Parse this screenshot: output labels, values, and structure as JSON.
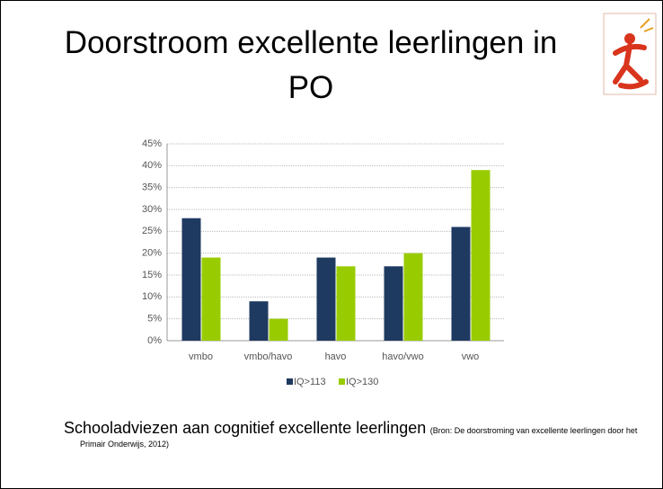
{
  "title": "Doorstroom excellente leerlingen in PO",
  "caption": "Schooladviezen aan cognitief excellente leerlingen",
  "source": "(Bron: De doorstroming van excellente leerlingen door het Primair Onderwijs, 2012)",
  "chart_data": {
    "type": "bar",
    "categories": [
      "vmbo",
      "vmbo/havo",
      "havo",
      "havo/vwo",
      "vwo"
    ],
    "series": [
      {
        "name": "IQ>113",
        "color": "#1f3a60",
        "values": [
          28,
          9,
          19,
          17,
          26
        ]
      },
      {
        "name": "IQ>130",
        "color": "#99cc00",
        "values": [
          19,
          5,
          17,
          20,
          39
        ]
      }
    ],
    "ylim": [
      0,
      45
    ],
    "yticks": [
      {
        "value": 0,
        "label": "0%"
      },
      {
        "value": 5,
        "label": "5%"
      },
      {
        "value": 10,
        "label": "10%"
      },
      {
        "value": 15,
        "label": "15%"
      },
      {
        "value": 20,
        "label": "20%"
      },
      {
        "value": 25,
        "label": "25%"
      },
      {
        "value": 30,
        "label": "30%"
      },
      {
        "value": 35,
        "label": "35%"
      },
      {
        "value": 40,
        "label": "40%"
      },
      {
        "value": 45,
        "label": "45%"
      }
    ],
    "grid": true,
    "legend": "bottom"
  }
}
